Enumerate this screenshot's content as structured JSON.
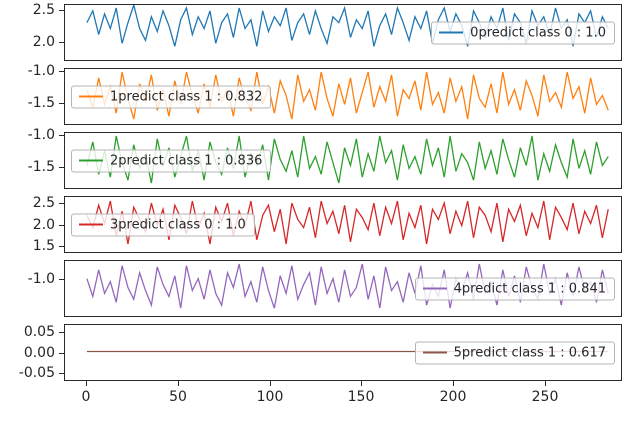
{
  "figure": {
    "background": "#ffffff",
    "text_color": "#262626"
  },
  "chart_data": {
    "type": "line",
    "title": "",
    "xlabel": "",
    "ylabel": "",
    "grid": false,
    "layout": "6 stacked subplots sharing one x axis",
    "xlim": [
      -12,
      292
    ],
    "x_data_max": 285,
    "xtick_labels": [
      "0",
      "50",
      "100",
      "150",
      "200",
      "250"
    ],
    "series": [
      {
        "name": "0predict class 0 : 1.0",
        "color": "#1f77b4",
        "legend_side": "right",
        "ylim": [
          1.7,
          2.6
        ],
        "ytick_labels": [
          "2.5",
          "2.0"
        ],
        "values": [
          2.3,
          2.5,
          2.1,
          2.45,
          2.2,
          2.55,
          1.95,
          2.3,
          2.6,
          2.2,
          2.0,
          2.4,
          2.15,
          2.5,
          2.25,
          1.9,
          2.35,
          2.55,
          2.1,
          2.4,
          2.2,
          2.5,
          1.95,
          2.3,
          2.45,
          2.05,
          2.55,
          2.2,
          2.35,
          1.9,
          2.5,
          2.15,
          2.4,
          2.25,
          2.55,
          2.0,
          2.3,
          2.45,
          2.1,
          2.5,
          2.2,
          1.95,
          2.4,
          2.3,
          2.55,
          2.05,
          2.35,
          2.2,
          2.5,
          1.9,
          2.25,
          2.45,
          2.1,
          2.55,
          2.3,
          2.0,
          2.4,
          2.2,
          2.5,
          1.95,
          2.35,
          2.55,
          2.15,
          2.45,
          2.25,
          1.9,
          2.5,
          2.3,
          2.05,
          2.4,
          2.2,
          2.55,
          2.0,
          2.45,
          2.3,
          1.95,
          2.5,
          2.25,
          2.4,
          2.1,
          2.55,
          2.2,
          2.35,
          1.9,
          2.45,
          2.3,
          2.5,
          2.05,
          2.4,
          2.2
        ]
      },
      {
        "name": "1predict class 1 : 0.832",
        "color": "#ff7f0e",
        "legend_side": "left",
        "ylim": [
          -1.85,
          -0.95
        ],
        "ytick_labels": [
          "-1.0",
          "-1.5"
        ],
        "values": [
          -1.3,
          -1.6,
          -1.1,
          -1.55,
          -1.25,
          -1.7,
          -1.0,
          -1.45,
          -1.8,
          -1.2,
          -1.5,
          -1.05,
          -1.65,
          -1.3,
          -1.75,
          -1.15,
          -1.55,
          -1.0,
          -1.4,
          -1.7,
          -1.2,
          -1.6,
          -1.05,
          -1.5,
          -1.3,
          -1.75,
          -1.1,
          -1.45,
          -1.65,
          -1.0,
          -1.55,
          -1.25,
          -1.7,
          -1.15,
          -1.4,
          -1.8,
          -1.05,
          -1.5,
          -1.3,
          -1.65,
          -1.0,
          -1.45,
          -1.75,
          -1.2,
          -1.55,
          -1.1,
          -1.7,
          -1.35,
          -1.0,
          -1.6,
          -1.25,
          -1.5,
          -1.05,
          -1.75,
          -1.3,
          -1.45,
          -1.15,
          -1.65,
          -1.0,
          -1.55,
          -1.35,
          -1.7,
          -1.1,
          -1.5,
          -1.25,
          -1.8,
          -1.05,
          -1.45,
          -1.6,
          -1.2,
          -1.7,
          -1.0,
          -1.55,
          -1.3,
          -1.65,
          -1.15,
          -1.4,
          -1.75,
          -1.05,
          -1.5,
          -1.35,
          -1.6,
          -1.0,
          -1.45,
          -1.25,
          -1.7,
          -1.1,
          -1.55,
          -1.4,
          -1.65
        ]
      },
      {
        "name": "2predict class 1 : 0.836",
        "color": "#2ca02c",
        "legend_side": "left",
        "ylim": [
          -1.85,
          -0.95
        ],
        "ytick_labels": [
          "-1.0",
          "-1.5"
        ],
        "values": [
          -1.5,
          -1.1,
          -1.65,
          -1.25,
          -1.7,
          -1.0,
          -1.45,
          -1.75,
          -1.15,
          -1.55,
          -1.3,
          -1.8,
          -1.05,
          -1.5,
          -1.2,
          -1.7,
          -1.35,
          -1.0,
          -1.6,
          -1.25,
          -1.75,
          -1.1,
          -1.45,
          -1.65,
          -1.2,
          -1.55,
          -1.0,
          -1.7,
          -1.3,
          -1.5,
          -1.15,
          -1.75,
          -1.05,
          -1.4,
          -1.6,
          -1.25,
          -1.7,
          -1.0,
          -1.55,
          -1.35,
          -1.65,
          -1.1,
          -1.45,
          -1.8,
          -1.2,
          -1.5,
          -1.05,
          -1.7,
          -1.3,
          -1.6,
          -1.0,
          -1.45,
          -1.25,
          -1.75,
          -1.15,
          -1.55,
          -1.35,
          -1.65,
          -1.05,
          -1.5,
          -1.2,
          -1.7,
          -1.0,
          -1.6,
          -1.3,
          -1.45,
          -1.75,
          -1.1,
          -1.55,
          -1.25,
          -1.65,
          -1.05,
          -1.4,
          -1.7,
          -1.2,
          -1.5,
          -1.0,
          -1.75,
          -1.3,
          -1.6,
          -1.15,
          -1.45,
          -1.7,
          -1.05,
          -1.55,
          -1.25,
          -1.65,
          -1.1,
          -1.5,
          -1.35
        ]
      },
      {
        "name": "3predict class 0 : 1.0",
        "color": "#d62728",
        "legend_side": "left",
        "ylim": [
          1.35,
          2.65
        ],
        "ytick_labels": [
          "2.5",
          "2.0",
          "1.5"
        ],
        "values": [
          2.2,
          1.9,
          2.45,
          2.0,
          2.55,
          1.7,
          2.3,
          1.5,
          2.4,
          2.1,
          1.8,
          2.5,
          1.95,
          2.35,
          1.6,
          2.45,
          2.15,
          1.75,
          2.55,
          1.9,
          2.25,
          1.5,
          2.4,
          2.05,
          2.5,
          1.7,
          2.3,
          1.95,
          2.55,
          1.6,
          2.2,
          2.45,
          1.8,
          2.35,
          1.5,
          2.5,
          2.1,
          1.9,
          2.4,
          1.65,
          2.55,
          2.0,
          2.3,
          1.75,
          2.45,
          1.55,
          2.35,
          2.15,
          1.85,
          2.5,
          1.7,
          2.4,
          2.0,
          2.55,
          1.6,
          2.25,
          1.9,
          2.45,
          1.5,
          2.35,
          2.1,
          2.5,
          1.75,
          2.3,
          1.95,
          2.55,
          1.65,
          2.4,
          2.2,
          1.8,
          2.5,
          1.55,
          2.35,
          2.05,
          2.45,
          1.7,
          2.25,
          1.9,
          2.55,
          1.6,
          2.4,
          2.15,
          1.85,
          2.5,
          1.75,
          2.3,
          2.0,
          2.45,
          1.65,
          2.35
        ]
      },
      {
        "name": "4predict class 1 : 0.841",
        "color": "#9467bd",
        "legend_side": "right",
        "ylim": [
          -1.6,
          -0.7
        ],
        "ytick_labels": [
          "-1.0"
        ],
        "values": [
          -1.0,
          -1.3,
          -0.85,
          -1.25,
          -1.05,
          -1.4,
          -0.78,
          -1.15,
          -1.35,
          -0.9,
          -1.2,
          -1.45,
          -0.8,
          -1.1,
          -1.3,
          -0.95,
          -1.5,
          -0.78,
          -1.2,
          -1.0,
          -1.35,
          -0.85,
          -1.25,
          -1.45,
          -0.9,
          -1.15,
          -0.75,
          -1.3,
          -1.05,
          -1.4,
          -0.8,
          -1.2,
          -1.5,
          -0.95,
          -1.25,
          -0.78,
          -1.35,
          -1.1,
          -0.9,
          -1.45,
          -0.8,
          -1.25,
          -1.0,
          -1.4,
          -0.85,
          -1.3,
          -1.15,
          -0.75,
          -1.35,
          -0.95,
          -1.5,
          -0.8,
          -1.2,
          -1.05,
          -1.4,
          -0.9,
          -1.25,
          -0.78,
          -1.45,
          -1.1,
          -1.3,
          -0.85,
          -1.5,
          -1.0,
          -1.2,
          -0.9,
          -1.35,
          -0.75,
          -1.25,
          -1.05,
          -1.45,
          -0.85,
          -1.3,
          -0.95,
          -1.4,
          -0.8,
          -1.15,
          -1.35,
          -0.75,
          -1.25,
          -1.0,
          -1.45,
          -0.9,
          -1.3,
          -0.8,
          -1.2,
          -1.05,
          -1.4,
          -0.85,
          -1.25
        ]
      },
      {
        "name": "5predict class 1 : 0.617",
        "color": "#8c564b",
        "legend_side": "right",
        "ylim": [
          -0.07,
          0.07
        ],
        "ytick_labels": [
          "0.05",
          "0.00",
          "-0.05"
        ],
        "values": [
          0,
          0
        ]
      }
    ]
  }
}
